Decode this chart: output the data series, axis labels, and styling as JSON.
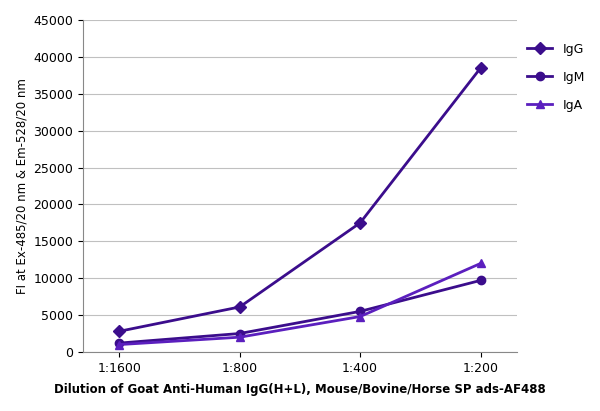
{
  "x_labels": [
    "1:1600",
    "1:800",
    "1:400",
    "1:200"
  ],
  "x_positions": [
    0,
    1,
    2,
    3
  ],
  "series": [
    {
      "name": "IgG",
      "values": [
        2800,
        6100,
        17500,
        38500
      ],
      "color": "#3B0D8C",
      "marker": "D",
      "markersize": 6,
      "linewidth": 2.0
    },
    {
      "name": "IgM",
      "values": [
        1200,
        2500,
        5500,
        9700
      ],
      "color": "#3B0D8C",
      "marker": "o",
      "markersize": 6,
      "linewidth": 2.0
    },
    {
      "name": "IgA",
      "values": [
        1000,
        2000,
        4800,
        12000
      ],
      "color": "#5B1FBE",
      "marker": "^",
      "markersize": 6,
      "linewidth": 2.0
    }
  ],
  "ylabel": "FI at Ex-485/20 nm & Em-528/20 nm",
  "xlabel": "Dilution of Goat Anti-Human IgG(H+L), Mouse/Bovine/Horse SP ads-AF488",
  "ylim": [
    0,
    45000
  ],
  "yticks": [
    0,
    5000,
    10000,
    15000,
    20000,
    25000,
    30000,
    35000,
    40000,
    45000
  ],
  "bg_color": "#ffffff",
  "plot_bg_color": "#ffffff",
  "grid_color": "#c0c0c0",
  "legend_outside": true
}
